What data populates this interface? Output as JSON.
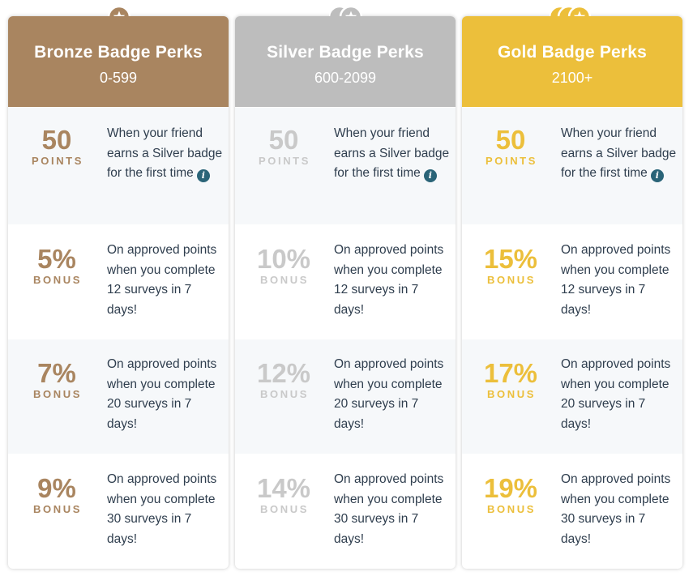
{
  "tiers": [
    {
      "key": "bronze",
      "title": "Bronze Badge Perks",
      "range": "0-599",
      "color": "#a98560",
      "medal_icon": "star-medal-icon",
      "referral": {
        "amount": "50",
        "unit": "POINTS",
        "text": "When your friend earns a Silver badge for the first time",
        "info_icon": "i"
      },
      "bonuses": [
        {
          "amount": "5%",
          "unit": "BONUS",
          "text": "On approved points when you complete 12 surveys in 7 days!"
        },
        {
          "amount": "7%",
          "unit": "BONUS",
          "text": "On approved points when you complete 20 surveys in 7 days!"
        },
        {
          "amount": "9%",
          "unit": "BONUS",
          "text": "On approved points when you complete 30 surveys in 7 days!"
        }
      ]
    },
    {
      "key": "silver",
      "title": "Silver Badge Perks",
      "range": "600-2099",
      "color": "#bdbdbd",
      "medal_icon": "double-star-medal-icon",
      "referral": {
        "amount": "50",
        "unit": "POINTS",
        "text": "When your friend earns a Silver badge for the first time",
        "info_icon": "i"
      },
      "bonuses": [
        {
          "amount": "10%",
          "unit": "BONUS",
          "text": "On approved points when you complete 12 surveys in 7 days!"
        },
        {
          "amount": "12%",
          "unit": "BONUS",
          "text": "On approved points when you complete 20 surveys in 7 days!"
        },
        {
          "amount": "14%",
          "unit": "BONUS",
          "text": "On approved points when you complete 30 surveys in 7 days!"
        }
      ]
    },
    {
      "key": "gold",
      "title": "Gold Badge Perks",
      "range": "2100+",
      "color": "#ecbf3b",
      "medal_icon": "triple-star-medal-icon",
      "referral": {
        "amount": "50",
        "unit": "POINTS",
        "text": "When your friend earns a Silver badge for the first time",
        "info_icon": "i"
      },
      "bonuses": [
        {
          "amount": "15%",
          "unit": "BONUS",
          "text": "On approved points when you complete 12 surveys in 7 days!"
        },
        {
          "amount": "17%",
          "unit": "BONUS",
          "text": "On approved points when you complete 20 surveys in 7 days!"
        },
        {
          "amount": "19%",
          "unit": "BONUS",
          "text": "On approved points when you complete 30 surveys in 7 days!"
        }
      ]
    }
  ]
}
